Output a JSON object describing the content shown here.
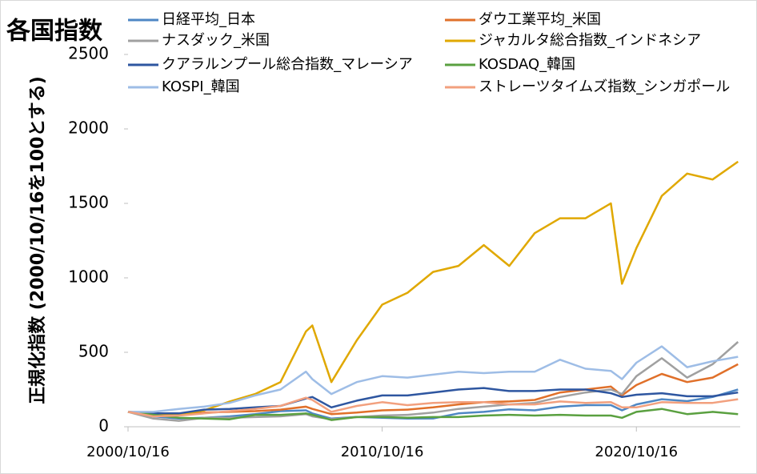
{
  "chart_data": {
    "type": "line",
    "title": "各国指数",
    "y_label": "正規化指数 (2000/10/16を100とする)",
    "x": [
      "2000/10/16",
      "2001/10/16",
      "2002/10/16",
      "2003/10/16",
      "2004/10/16",
      "2005/10/16",
      "2006/10/16",
      "2007/10/16",
      "2008/01/16",
      "2008/10/16",
      "2009/10/16",
      "2010/10/16",
      "2011/10/16",
      "2012/10/16",
      "2013/10/16",
      "2014/10/16",
      "2015/10/16",
      "2016/10/16",
      "2017/10/16",
      "2018/10/16",
      "2019/10/16",
      "2020/03/24",
      "2020/10/16",
      "2021/10/16",
      "2022/10/16",
      "2023/10/16",
      "2024/10/16"
    ],
    "xlim": [
      "2000/10/16",
      "2024/11/16"
    ],
    "xticks": [
      "2000/10/16",
      "2010/10/16",
      "2020/10/16"
    ],
    "ylim": [
      0,
      2500
    ],
    "yticks": [
      0,
      500,
      1000,
      1500,
      2000,
      2500
    ],
    "series": [
      {
        "name": "日経平均_日本",
        "color": "#4e87c4",
        "values": [
          100,
          70,
          55,
          60,
          70,
          85,
          105,
          110,
          90,
          55,
          66,
          60,
          55,
          56,
          90,
          100,
          117,
          110,
          135,
          145,
          145,
          110,
          150,
          185,
          172,
          200,
          250
        ]
      },
      {
        "name": "ダウ工業平均_米国",
        "color": "#e0702a",
        "values": [
          100,
          90,
          80,
          95,
          100,
          105,
          115,
          135,
          120,
          85,
          95,
          110,
          115,
          130,
          150,
          165,
          170,
          180,
          230,
          250,
          270,
          210,
          280,
          355,
          300,
          330,
          420
        ]
      },
      {
        "name": "ナスダック_米国",
        "color": "#a0a0a0",
        "values": [
          100,
          55,
          40,
          60,
          60,
          65,
          70,
          85,
          70,
          50,
          65,
          75,
          80,
          95,
          120,
          135,
          150,
          160,
          200,
          230,
          250,
          220,
          340,
          460,
          330,
          420,
          570
        ]
      },
      {
        "name": "ジャカルタ総合指数_インドネシア",
        "color": "#e0a800",
        "values": [
          100,
          85,
          80,
          110,
          170,
          220,
          300,
          640,
          680,
          300,
          580,
          820,
          900,
          1040,
          1080,
          1220,
          1080,
          1300,
          1400,
          1400,
          1500,
          960,
          1200,
          1550,
          1700,
          1660,
          1780
        ]
      },
      {
        "name": "クアラルンプール総合指数_マレーシア",
        "color": "#2e56a0",
        "values": [
          100,
          90,
          90,
          115,
          120,
          130,
          140,
          190,
          200,
          130,
          175,
          210,
          210,
          230,
          250,
          260,
          240,
          240,
          250,
          250,
          225,
          200,
          215,
          225,
          205,
          205,
          230
        ]
      },
      {
        "name": "KOSDAQ_韓国",
        "color": "#5aa040",
        "values": [
          100,
          80,
          60,
          55,
          50,
          80,
          80,
          90,
          80,
          45,
          65,
          65,
          60,
          65,
          65,
          75,
          80,
          75,
          80,
          75,
          75,
          60,
          100,
          120,
          85,
          100,
          85
        ]
      },
      {
        "name": "KOSPI_韓国",
        "color": "#9ebde6",
        "values": [
          100,
          100,
          120,
          135,
          160,
          210,
          250,
          370,
          320,
          220,
          300,
          340,
          330,
          350,
          370,
          360,
          370,
          370,
          450,
          390,
          375,
          320,
          430,
          540,
          400,
          440,
          470
        ]
      },
      {
        "name": "ストレーツタイムズ指数_シンガポール",
        "color": "#f2a07e",
        "values": [
          100,
          70,
          75,
          90,
          105,
          120,
          140,
          195,
          180,
          100,
          140,
          165,
          145,
          160,
          165,
          165,
          150,
          150,
          170,
          160,
          165,
          130,
          130,
          165,
          160,
          160,
          185
        ]
      }
    ]
  }
}
